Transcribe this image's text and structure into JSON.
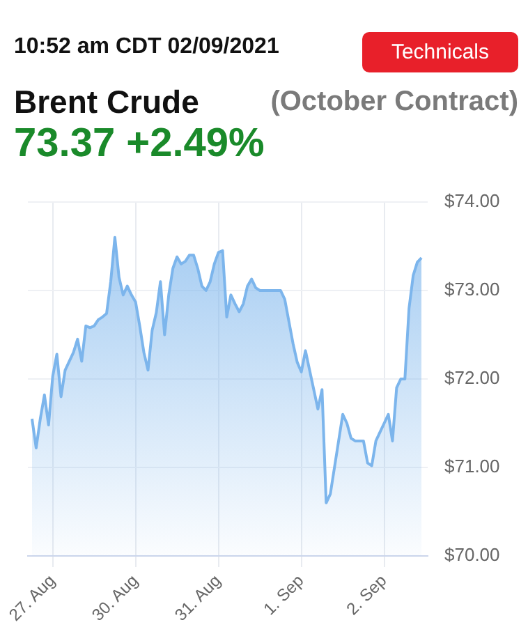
{
  "chart_data": {
    "type": "area",
    "title": "Brent Crude",
    "subtitle": "(October Contract)",
    "annotations": [
      "10:52 am CDT 02/09/2021",
      "Technicals",
      "73.37 +2.49%"
    ],
    "categories": [
      null,
      null,
      null,
      null,
      null,
      "27. Aug",
      null,
      null,
      null,
      null,
      null,
      null,
      null,
      null,
      null,
      null,
      null,
      null,
      null,
      null,
      null,
      null,
      null,
      null,
      null,
      "30. Aug",
      null,
      null,
      null,
      null,
      null,
      null,
      null,
      null,
      null,
      null,
      null,
      null,
      null,
      null,
      null,
      null,
      null,
      null,
      null,
      "31. Aug",
      null,
      null,
      null,
      null,
      null,
      null,
      null,
      null,
      null,
      null,
      null,
      null,
      null,
      null,
      null,
      null,
      null,
      null,
      null,
      "1. Sep",
      null,
      null,
      null,
      null,
      null,
      null,
      null,
      null,
      null,
      null,
      null,
      null,
      null,
      null,
      null,
      null,
      null,
      null,
      null,
      "2. Sep",
      null,
      null,
      null,
      null,
      null,
      null,
      null,
      null,
      null
    ],
    "series": [
      {
        "color": "#7cb5ec",
        "values": [
          71.55,
          71.22,
          71.55,
          71.82,
          71.48,
          72.03,
          72.28,
          71.8,
          72.1,
          72.2,
          72.3,
          72.45,
          72.2,
          72.6,
          72.58,
          72.6,
          72.67,
          72.7,
          72.74,
          73.1,
          73.6,
          73.15,
          72.95,
          73.05,
          72.95,
          72.87,
          72.6,
          72.3,
          72.1,
          72.55,
          72.75,
          73.1,
          72.5,
          72.95,
          73.25,
          73.38,
          73.3,
          73.33,
          73.4,
          73.4,
          73.25,
          73.05,
          73.0,
          73.1,
          73.3,
          73.43,
          73.45,
          72.7,
          72.95,
          72.85,
          72.76,
          72.85,
          73.05,
          73.13,
          73.03,
          73.0,
          73.0,
          73.0,
          73.0,
          73.0,
          73.0,
          72.9,
          72.65,
          72.4,
          72.19,
          72.08,
          72.32,
          72.1,
          71.88,
          71.66,
          71.88,
          70.6,
          70.7,
          71.0,
          71.3,
          71.6,
          71.5,
          71.33,
          71.3,
          71.3,
          71.3,
          71.05,
          71.02,
          71.3,
          71.4,
          71.5,
          71.6,
          71.3,
          71.9,
          72.0,
          72.0,
          72.8,
          73.17,
          73.32,
          73.37
        ]
      }
    ],
    "ylim": [
      70,
      74
    ],
    "yticks": [
      {
        "value": 70,
        "label": "$70.00"
      },
      {
        "value": 71,
        "label": "$71.00"
      },
      {
        "value": 72,
        "label": "$72.00"
      },
      {
        "value": 73,
        "label": "$73.00"
      },
      {
        "value": 74,
        "label": "$74.00"
      }
    ],
    "grid": true,
    "legend": false,
    "marker": "none"
  }
}
